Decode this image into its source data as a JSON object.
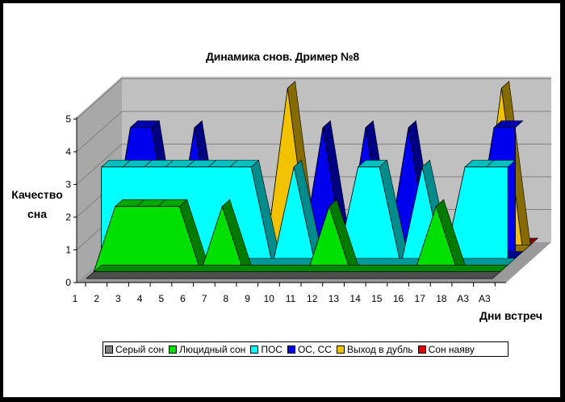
{
  "chart_data": {
    "type": "area",
    "title": "Динамика снов.  Дример №8",
    "ylabel": "Качество сна",
    "xlabel": "Дни встреч",
    "ylim": [
      0,
      5
    ],
    "yticks": [
      "0",
      "1",
      "2",
      "3",
      "4",
      "5"
    ],
    "categories": [
      "1",
      "2",
      "3",
      "4",
      "5",
      "6",
      "7",
      "8",
      "9",
      "10",
      "11",
      "12",
      "13",
      "14",
      "15",
      "16",
      "17",
      "18",
      "А3",
      "А3"
    ],
    "series": [
      {
        "name": "Серый сон",
        "color": "#808080",
        "values": [
          0,
          0,
          0,
          0,
          0,
          0,
          0,
          0,
          0,
          0,
          0,
          0,
          0,
          0,
          0,
          0,
          0,
          0,
          0,
          0
        ]
      },
      {
        "name": "Люцидный сон",
        "color": "#00e000",
        "values": [
          0,
          2,
          2,
          2,
          2,
          0,
          2,
          0,
          0,
          0,
          0,
          2,
          0,
          0,
          0,
          0,
          2,
          0,
          0,
          0
        ]
      },
      {
        "name": "ПОС",
        "color": "#00ffff",
        "values": [
          3,
          3,
          3,
          3,
          3,
          3,
          3,
          3,
          0,
          3,
          0,
          0,
          3,
          3,
          0,
          3,
          0,
          3,
          3,
          3
        ]
      },
      {
        "name": "ОС, СС",
        "color": "#0000ee",
        "values": [
          0,
          4,
          4,
          0,
          4,
          0,
          0,
          0,
          0,
          0,
          4,
          0,
          4,
          0,
          4,
          0,
          0,
          0,
          4,
          4
        ]
      },
      {
        "name": "Выход в дубль",
        "color": "#f2c200",
        "values": [
          0,
          0,
          0,
          0,
          0,
          0,
          0,
          0,
          5,
          0,
          0,
          0,
          0,
          0,
          0,
          0,
          0,
          0,
          5,
          0
        ]
      },
      {
        "name": "Сон наяву",
        "color": "#e00000",
        "values": [
          0,
          0,
          0,
          0,
          0,
          0,
          0,
          0,
          0,
          0,
          0,
          0,
          0,
          0,
          0,
          0,
          0,
          0,
          0,
          0
        ]
      }
    ]
  }
}
